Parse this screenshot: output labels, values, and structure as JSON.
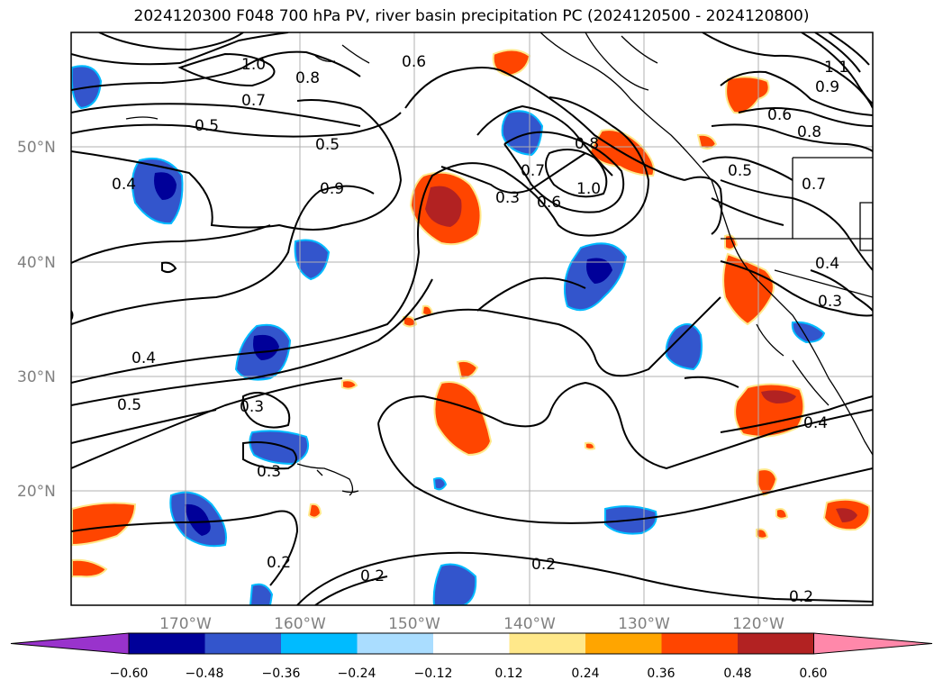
{
  "title": "2024120300 F048 700 hPa PV, river basin precipitation PC (2024120500 - 2024120800)",
  "lat_labels": [
    "50°N",
    "40°N",
    "30°N",
    "20°N"
  ],
  "lon_labels": [
    "170°W",
    "160°W",
    "150°W",
    "140°W",
    "130°W",
    "120°W"
  ],
  "contour_labels": [
    "1.0",
    "0.7",
    "0.8",
    "0.6",
    "0.5",
    "0.5",
    "0.9",
    "0.4",
    "0.3",
    "0.7",
    "0.6",
    "1.0",
    "0.8",
    "0.6",
    "0.8",
    "0.5",
    "0.7",
    "1.1",
    "0.9",
    "0.4",
    "0.3",
    "0.4",
    "0.5",
    "0.3",
    "0.3",
    "0.4",
    "0.2",
    "0.2",
    "0.2",
    "0.2"
  ],
  "colorbar": {
    "ticks": [
      "−0.60",
      "−0.48",
      "−0.36",
      "−0.24",
      "−0.12",
      "0.12",
      "0.24",
      "0.36",
      "0.48",
      "0.60"
    ],
    "colors": [
      "#9933cc",
      "#000099",
      "#3355cc",
      "#00bbff",
      "#aaddff",
      "#ffffff",
      "#ffe88a",
      "#ffa500",
      "#ff4500",
      "#b22222",
      "#ff88aa"
    ]
  },
  "colors": {
    "neg_strong": "#000099",
    "neg_mid": "#3355cc",
    "neg_light": "#00bbff",
    "pos_light": "#ffe88a",
    "pos_mid": "#ff4500",
    "pos_strong": "#b22222"
  }
}
